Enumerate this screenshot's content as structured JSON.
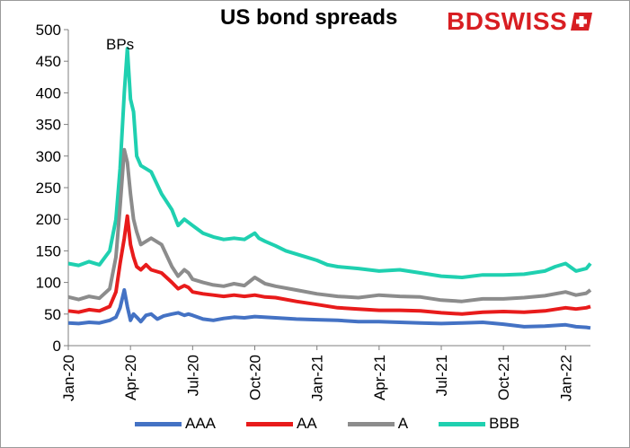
{
  "brand": {
    "part1": "BD",
    "part2": "SWISS"
  },
  "chart_data": {
    "type": "line",
    "title": "US bond spreads",
    "annotation": "BPs",
    "ylim": [
      0,
      500
    ],
    "yticks": [
      0,
      50,
      100,
      150,
      200,
      250,
      300,
      350,
      400,
      450,
      500
    ],
    "x_tick_labels": [
      "Jan-20",
      "Apr-20",
      "Jul-20",
      "Oct-20",
      "Jan-21",
      "Apr-21",
      "Jul-21",
      "Oct-21",
      "Jan-22"
    ],
    "x_tick_months": [
      0,
      3,
      6,
      9,
      12,
      15,
      18,
      21,
      24
    ],
    "x_range_months": [
      0,
      25.2
    ],
    "grid": false,
    "legend_position": "bottom",
    "series": [
      {
        "name": "BBB",
        "color": "#1fd0b0",
        "x": [
          0,
          0.5,
          1,
          1.5,
          2,
          2.3,
          2.5,
          2.7,
          2.85,
          3.0,
          3.15,
          3.3,
          3.5,
          3.75,
          4.0,
          4.5,
          5.0,
          5.3,
          5.6,
          5.8,
          6.0,
          6.5,
          7.0,
          7.5,
          8.0,
          8.5,
          9.0,
          9.2,
          9.5,
          10,
          10.5,
          11,
          11.5,
          12,
          12.5,
          13,
          14,
          15,
          16,
          17,
          18,
          19,
          20,
          21,
          22,
          23,
          23.5,
          24,
          24.5,
          25,
          25.2
        ],
        "y": [
          130,
          127,
          133,
          128,
          150,
          200,
          280,
          400,
          470,
          390,
          370,
          300,
          285,
          280,
          275,
          240,
          215,
          190,
          200,
          195,
          190,
          178,
          172,
          168,
          170,
          168,
          178,
          170,
          165,
          158,
          150,
          145,
          140,
          135,
          128,
          125,
          122,
          118,
          120,
          115,
          110,
          108,
          112,
          112,
          113,
          118,
          125,
          130,
          118,
          122,
          130
        ]
      },
      {
        "name": "A",
        "color": "#8c8c8c",
        "x": [
          0,
          0.5,
          1,
          1.5,
          2,
          2.3,
          2.5,
          2.7,
          2.85,
          3.0,
          3.15,
          3.3,
          3.5,
          3.75,
          4.0,
          4.5,
          5.0,
          5.3,
          5.6,
          5.8,
          6.0,
          6.5,
          7.0,
          7.5,
          8.0,
          8.5,
          9.0,
          9.5,
          10,
          11,
          12,
          13,
          14,
          15,
          16,
          17,
          18,
          19,
          20,
          21,
          22,
          23,
          24,
          24.5,
          25,
          25.2
        ],
        "y": [
          77,
          73,
          78,
          75,
          90,
          140,
          220,
          310,
          290,
          240,
          200,
          180,
          160,
          165,
          170,
          160,
          125,
          110,
          120,
          115,
          105,
          100,
          96,
          94,
          98,
          95,
          108,
          98,
          94,
          88,
          82,
          78,
          76,
          80,
          78,
          77,
          72,
          70,
          74,
          74,
          76,
          79,
          85,
          80,
          83,
          88
        ]
      },
      {
        "name": "AA",
        "color": "#e81b1b",
        "x": [
          0,
          0.5,
          1,
          1.5,
          2,
          2.3,
          2.5,
          2.7,
          2.85,
          3.0,
          3.15,
          3.3,
          3.5,
          3.75,
          4.0,
          4.5,
          5.0,
          5.3,
          5.6,
          5.8,
          6.0,
          6.5,
          7.0,
          7.5,
          8.0,
          8.5,
          9.0,
          9.5,
          10,
          11,
          12,
          13,
          14,
          15,
          16,
          17,
          18,
          19,
          20,
          21,
          22,
          23,
          24,
          24.5,
          25,
          25.2
        ],
        "y": [
          55,
          53,
          57,
          55,
          62,
          85,
          130,
          170,
          205,
          160,
          140,
          125,
          120,
          128,
          120,
          115,
          100,
          90,
          95,
          92,
          85,
          82,
          80,
          78,
          80,
          78,
          80,
          77,
          76,
          70,
          65,
          60,
          58,
          56,
          56,
          55,
          52,
          50,
          53,
          54,
          53,
          55,
          60,
          58,
          60,
          62
        ]
      },
      {
        "name": "AAA",
        "color": "#4472c4",
        "x": [
          0,
          0.5,
          1,
          1.5,
          2,
          2.3,
          2.5,
          2.7,
          2.85,
          3.0,
          3.15,
          3.3,
          3.5,
          3.75,
          4.0,
          4.3,
          4.6,
          5.0,
          5.3,
          5.6,
          5.8,
          6.0,
          6.5,
          7.0,
          7.5,
          8.0,
          8.5,
          9.0,
          10,
          11,
          12,
          13,
          14,
          15,
          16,
          17,
          18,
          19,
          20,
          21,
          22,
          23,
          24,
          24.5,
          25,
          25.2
        ],
        "y": [
          36,
          35,
          37,
          36,
          40,
          45,
          60,
          88,
          62,
          40,
          50,
          45,
          38,
          48,
          50,
          42,
          47,
          50,
          52,
          48,
          50,
          48,
          42,
          40,
          43,
          45,
          44,
          46,
          44,
          42,
          41,
          40,
          38,
          38,
          37,
          36,
          35,
          36,
          37,
          34,
          30,
          31,
          33,
          30,
          29,
          28
        ]
      }
    ],
    "legend_order": [
      "AAA",
      "AA",
      "A",
      "BBB"
    ]
  }
}
